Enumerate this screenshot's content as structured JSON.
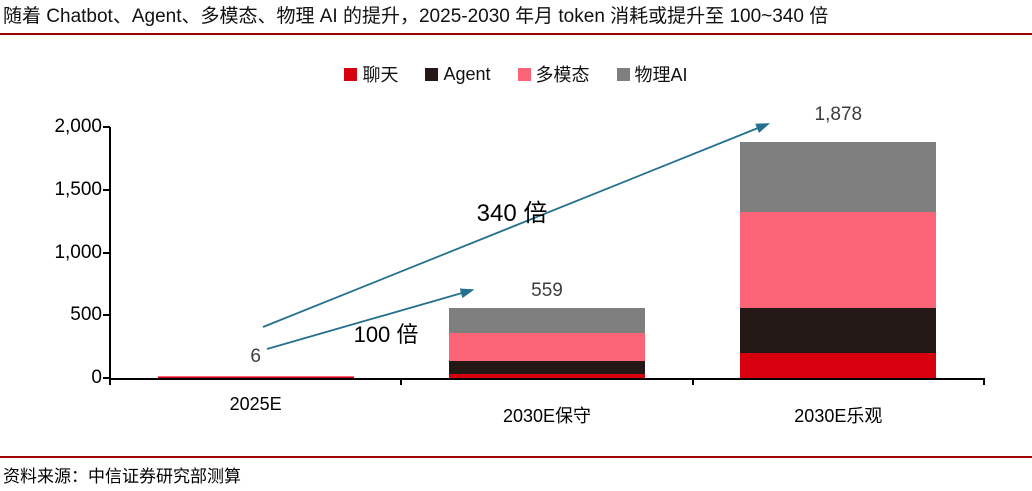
{
  "title": "随着 Chatbot、Agent、多模态、物理 AI 的提升，2025-2030 年月 token 消耗或提升至 100~340 倍",
  "source": "资料来源：中信证券研究部测算",
  "colors": {
    "divider_red": "#a00000",
    "arrow_teal": "#24708f",
    "axis_black": "#000000"
  },
  "chart_data": {
    "type": "bar",
    "stacked": true,
    "grid": false,
    "legend_position": "top",
    "categories": [
      "2025E",
      "2030E保守",
      "2030E乐观"
    ],
    "series": [
      {
        "name": "聊天",
        "slug": "chat",
        "color": "#d7000f",
        "values": [
          2,
          30,
          200
        ]
      },
      {
        "name": "Agent",
        "slug": "agent",
        "color": "#231815",
        "values": [
          1,
          105,
          358
        ]
      },
      {
        "name": "多模态",
        "slug": "multimodal",
        "color": "#fb6377",
        "values": [
          2,
          220,
          762
        ]
      },
      {
        "name": "物理AI",
        "slug": "physical-ai",
        "color": "#7f7f7f",
        "values": [
          1,
          204,
          558
        ]
      }
    ],
    "totals": [
      6,
      559,
      1878
    ],
    "total_labels": [
      "6",
      "559",
      "1,878"
    ],
    "ylim": [
      0,
      2000
    ],
    "yticks": [
      0,
      500,
      1000,
      1500,
      2000
    ],
    "ytick_labels": [
      "0",
      "500",
      "1,000",
      "1,500",
      "2,000"
    ],
    "annotations": [
      {
        "text": "100 倍",
        "meaning": "growth multiple from 2025E to 2030E conservative"
      },
      {
        "text": "340 倍",
        "meaning": "growth multiple from 2025E to 2030E optimistic"
      }
    ]
  }
}
